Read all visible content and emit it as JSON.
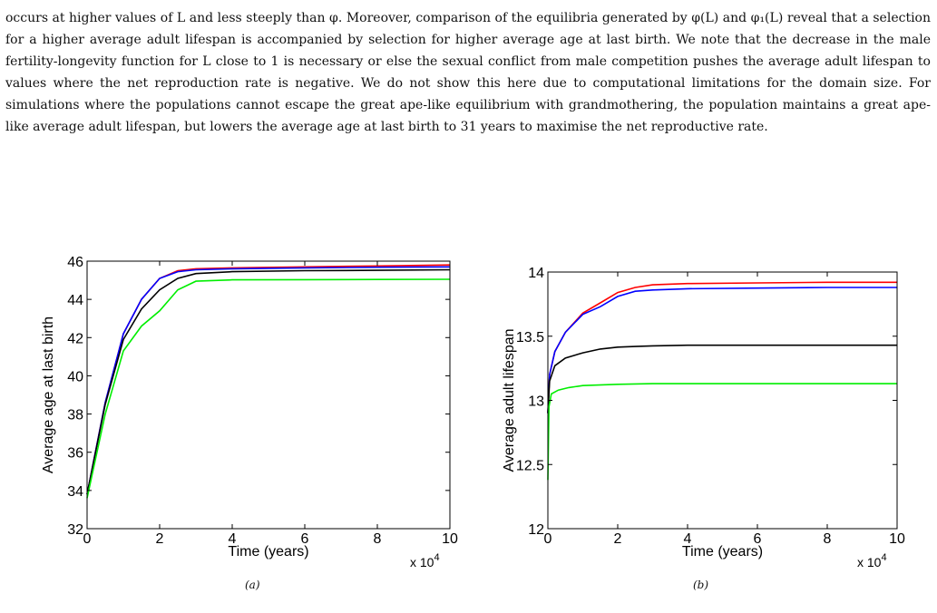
{
  "paragraph": "occurs at higher values of L and less steeply than φ. Moreover, comparison of the equilibria generated by φ(L) and φ₁(L) reveal that a selection for a higher average adult lifespan is accompanied by selection for higher average age at last birth. We note that the decrease in the male fertility-longevity function for L close to 1 is necessary or else the sexual conflict from male competition pushes the average adult lifespan to values where the net reproduction rate is negative. We do not show this here due to computational limitations for the domain size. For simulations where the populations cannot escape the great ape-like equilibrium with grandmothering, the population maintains a great ape-like average adult lifespan, but lowers the average age at last birth to 31 years to maximise the net reproductive rate.",
  "figures": {
    "a_caption": "(a)",
    "b_caption": "(b)"
  },
  "colors": {
    "red": "#ff0000",
    "blue": "#0000ff",
    "black": "#000000",
    "green": "#00ee00"
  },
  "chart_data": [
    {
      "type": "line",
      "xlabel": "Time (years)",
      "ylabel": "Average age at last birth",
      "x_multiplier": "x 10^4",
      "xlim": [
        0,
        10
      ],
      "ylim": [
        32,
        46
      ],
      "xticks": [
        0,
        2,
        4,
        6,
        8,
        10
      ],
      "yticks": [
        32,
        34,
        36,
        38,
        40,
        42,
        44,
        46
      ],
      "series": [
        {
          "color": "red",
          "x": [
            0,
            0.5,
            1,
            1.5,
            2,
            2.5,
            3,
            4,
            6,
            8,
            10
          ],
          "y": [
            33.8,
            38.6,
            42.2,
            44.0,
            45.1,
            45.5,
            45.6,
            45.65,
            45.7,
            45.75,
            45.8
          ]
        },
        {
          "color": "blue",
          "x": [
            0,
            0.5,
            1,
            1.5,
            2,
            2.5,
            3,
            4,
            6,
            8,
            10
          ],
          "y": [
            33.8,
            38.6,
            42.2,
            44.0,
            45.1,
            45.45,
            45.55,
            45.6,
            45.65,
            45.68,
            45.7
          ]
        },
        {
          "color": "black",
          "x": [
            0,
            0.5,
            1,
            1.5,
            2,
            2.5,
            3,
            4,
            6,
            8,
            10
          ],
          "y": [
            33.8,
            38.5,
            41.9,
            43.5,
            44.5,
            45.1,
            45.35,
            45.45,
            45.5,
            45.52,
            45.55
          ]
        },
        {
          "color": "green",
          "x": [
            0,
            0.5,
            1,
            1.5,
            2,
            2.5,
            3,
            4,
            6,
            8,
            10
          ],
          "y": [
            33.6,
            38.0,
            41.3,
            42.6,
            43.4,
            44.5,
            44.95,
            45.02,
            45.03,
            45.04,
            45.05
          ]
        }
      ]
    },
    {
      "type": "line",
      "xlabel": "Time (years)",
      "ylabel": "Average adult lifespan",
      "x_multiplier": "x 10^4",
      "xlim": [
        0,
        10
      ],
      "ylim": [
        12,
        14
      ],
      "xticks": [
        0,
        2,
        4,
        6,
        8,
        10
      ],
      "yticks": [
        12,
        12.5,
        13,
        13.5,
        14
      ],
      "series": [
        {
          "color": "red",
          "x": [
            0,
            0.05,
            0.2,
            0.5,
            1,
            1.5,
            2,
            2.5,
            3,
            4,
            6,
            8,
            10
          ],
          "y": [
            12.9,
            13.2,
            13.38,
            13.53,
            13.68,
            13.76,
            13.84,
            13.88,
            13.9,
            13.91,
            13.915,
            13.92,
            13.92
          ]
        },
        {
          "color": "blue",
          "x": [
            0,
            0.05,
            0.2,
            0.5,
            1,
            1.5,
            2,
            2.5,
            3,
            4,
            6,
            8,
            10
          ],
          "y": [
            12.9,
            13.2,
            13.38,
            13.53,
            13.67,
            13.73,
            13.81,
            13.85,
            13.86,
            13.87,
            13.875,
            13.88,
            13.88
          ]
        },
        {
          "color": "black",
          "x": [
            0,
            0.05,
            0.2,
            0.5,
            1,
            1.5,
            2,
            2.5,
            3,
            4,
            6,
            8,
            10
          ],
          "y": [
            12.9,
            13.15,
            13.27,
            13.33,
            13.37,
            13.4,
            13.415,
            13.42,
            13.425,
            13.43,
            13.43,
            13.43,
            13.43
          ]
        },
        {
          "color": "green",
          "x": [
            0,
            0.03,
            0.1,
            0.3,
            0.6,
            1,
            2,
            3,
            4,
            6,
            8,
            10
          ],
          "y": [
            12.38,
            12.95,
            13.05,
            13.08,
            13.1,
            13.115,
            13.125,
            13.13,
            13.13,
            13.13,
            13.13,
            13.13
          ]
        }
      ]
    }
  ]
}
